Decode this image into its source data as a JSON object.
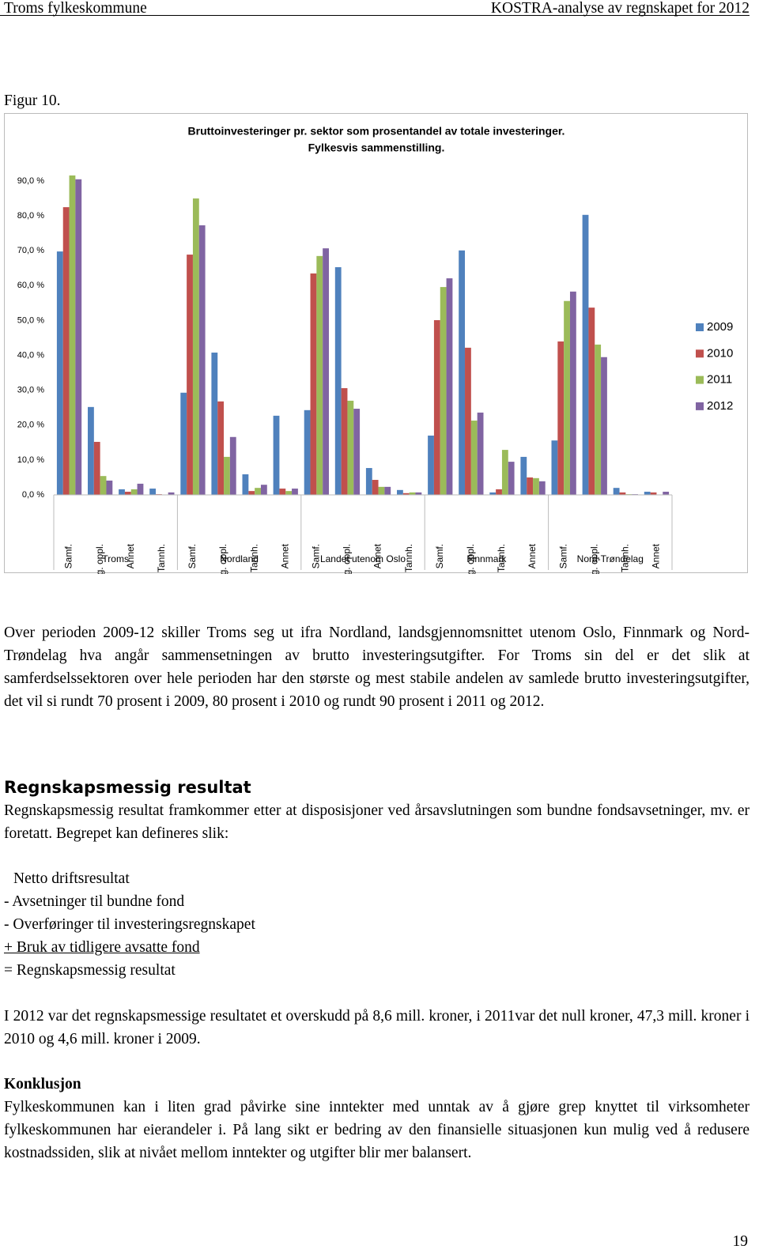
{
  "header": {
    "left": "Troms fylkeskommune",
    "right": "KOSTRA-analyse av regnskapet for 2012"
  },
  "figure_label": "Figur 10.",
  "chart_data": {
    "type": "bar",
    "title": [
      "Bruttoinvesteringer pr. sektor som prosentandel av totale investeringer.",
      "Fylkesvis sammenstilling."
    ],
    "categories": [
      "Samf.",
      "Vg. oppl.",
      "Annet",
      "Tannh.",
      "Samf.",
      "Vg. oppl.",
      "Tannh.",
      "Annet",
      "Samf.",
      "Vg. oppl.",
      "Annet",
      "Tannh.",
      "Samf.",
      "Vg. oppl.",
      "Tannh.",
      "Annet",
      "Samf.",
      "Vg. oppl.",
      "Tannh.",
      "Annet"
    ],
    "groups": [
      "Troms",
      "Nordland",
      "Landet utenom Oslo",
      "Finnmark",
      "Nord-Trøndelag"
    ],
    "series": [
      {
        "name": "2009",
        "color": "#4f81bd",
        "values": [
          69.8,
          25.2,
          1.6,
          1.8,
          29.3,
          40.8,
          5.9,
          22.7,
          24.3,
          65.3,
          7.7,
          1.4,
          17.0,
          70.1,
          0.7,
          10.9,
          15.6,
          80.3,
          2.0,
          0.9
        ]
      },
      {
        "name": "2010",
        "color": "#c0504d",
        "values": [
          82.5,
          15.2,
          0.9,
          0.2,
          68.9,
          26.8,
          1.1,
          1.8,
          63.5,
          30.6,
          4.3,
          0.5,
          50.1,
          42.2,
          1.6,
          5.0,
          44.0,
          53.7,
          0.7,
          0.7
        ]
      },
      {
        "name": "2011",
        "color": "#9bbb59",
        "values": [
          91.6,
          5.4,
          1.6,
          0.1,
          85.0,
          10.9,
          2.0,
          1.1,
          68.5,
          27.0,
          2.3,
          0.7,
          59.6,
          21.3,
          12.9,
          4.8,
          55.6,
          43.1,
          0.2,
          0
        ]
      },
      {
        "name": "2012",
        "color": "#8064a2",
        "values": [
          90.5,
          4.1,
          3.2,
          0.7,
          77.3,
          16.6,
          2.9,
          1.8,
          70.7,
          24.7,
          2.3,
          0.7,
          62.1,
          23.6,
          9.5,
          3.9,
          58.3,
          39.5,
          0.2,
          0.9
        ]
      }
    ],
    "ylim": [
      0,
      90
    ],
    "yticks": [
      {
        "value": 0,
        "label": "0,0 %"
      },
      {
        "value": 10,
        "label": "10,0 %"
      },
      {
        "value": 20,
        "label": "20,0 %"
      },
      {
        "value": 30,
        "label": "30,0 %"
      },
      {
        "value": 40,
        "label": "40,0 %"
      },
      {
        "value": 50,
        "label": "50,0 %"
      },
      {
        "value": 60,
        "label": "60,0 %"
      },
      {
        "value": 70,
        "label": "70,0 %"
      },
      {
        "value": 80,
        "label": "80,0 %"
      },
      {
        "value": 90,
        "label": "90,0 %"
      }
    ],
    "grid": false,
    "legend": "right"
  },
  "body": {
    "paragraph_1": "Over perioden 2009-12 skiller Troms seg ut ifra Nordland, landsgjennomsnittet utenom Oslo, Finnmark og Nord-Trøndelag hva angår sammensetningen av brutto investeringsutgifter. For Troms sin del er det slik at samferdselssektoren over hele perioden har den største og mest stabile andelen av samlede brutto investeringsutgifter, det vil si rundt 70 prosent i 2009, 80 prosent i 2010 og rundt 90 prosent i 2011 og 2012.",
    "heading": "Regnskapsmessig resultat",
    "paragraph_2": "Regnskapsmessig resultat framkommer etter at disposisjoner ved årsavslutningen som bundne fondsavsetninger, mv. er foretatt. Begrepet kan defineres slik:",
    "formula": [
      "Netto driftsresultat",
      "- Avsetninger til bundne fond",
      "- Overføringer til investeringsregnskapet",
      "+ Bruk av tidligere avsatte fond",
      "= Regnskapsmessig resultat"
    ],
    "paragraph_3": "I 2012 var det regnskapsmessige resultatet et overskudd på 8,6 mill. kroner, i 2011var det null kroner, 47,3 mill. kroner i 2010 og 4,6 mill. kroner i 2009.",
    "conclusion_heading": "Konklusjon",
    "paragraph_4": "Fylkeskommunen kan i liten grad påvirke sine inntekter med unntak av å gjøre grep knyttet til virksomheter fylkeskommunen har eierandeler i. På lang sikt er bedring av den finansielle situasjonen kun mulig ved å redusere kostnadssiden, slik at nivået mellom inntekter og utgifter blir mer balansert."
  },
  "page_number": "19"
}
